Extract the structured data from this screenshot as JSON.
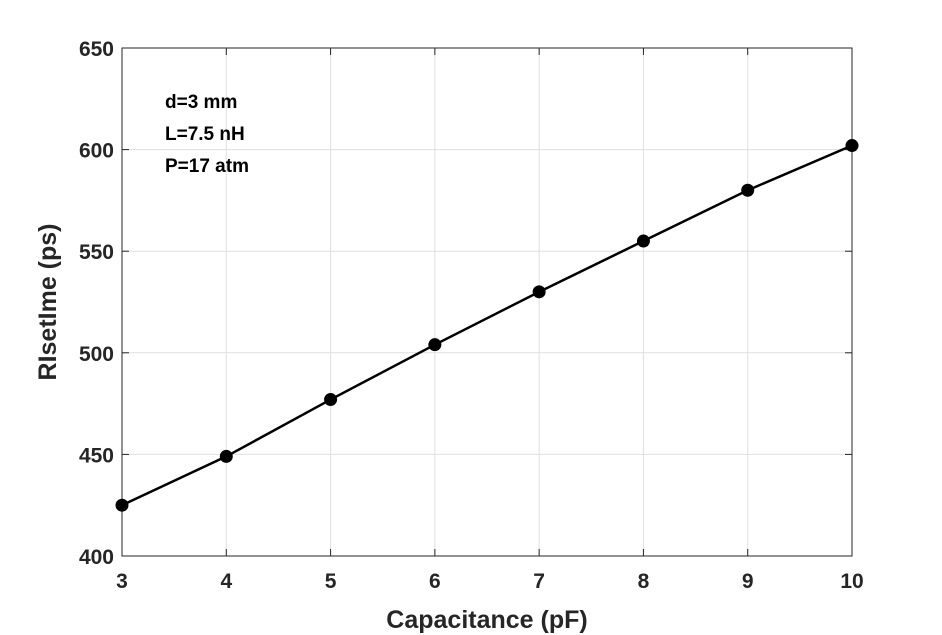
{
  "chart_data": {
    "type": "line",
    "x": [
      3,
      4,
      5,
      6,
      7,
      8,
      9,
      10
    ],
    "series": [
      {
        "color": "#000000",
        "values": [
          425,
          449,
          477,
          504,
          530,
          555,
          580,
          602
        ]
      }
    ],
    "xlim": [
      3,
      10
    ],
    "xticks": [
      3,
      4,
      5,
      6,
      7,
      8,
      9,
      10
    ],
    "ylim": [
      400,
      650
    ],
    "yticks": [
      400,
      450,
      500,
      550,
      600,
      650
    ],
    "xlabel": "Capacitance (pF)",
    "ylabel": "RIsetIme (ps)",
    "annotations": [
      "d=3 mm",
      "L=7.5 nH",
      "P=17 atm"
    ],
    "grid": true,
    "markers": true
  }
}
